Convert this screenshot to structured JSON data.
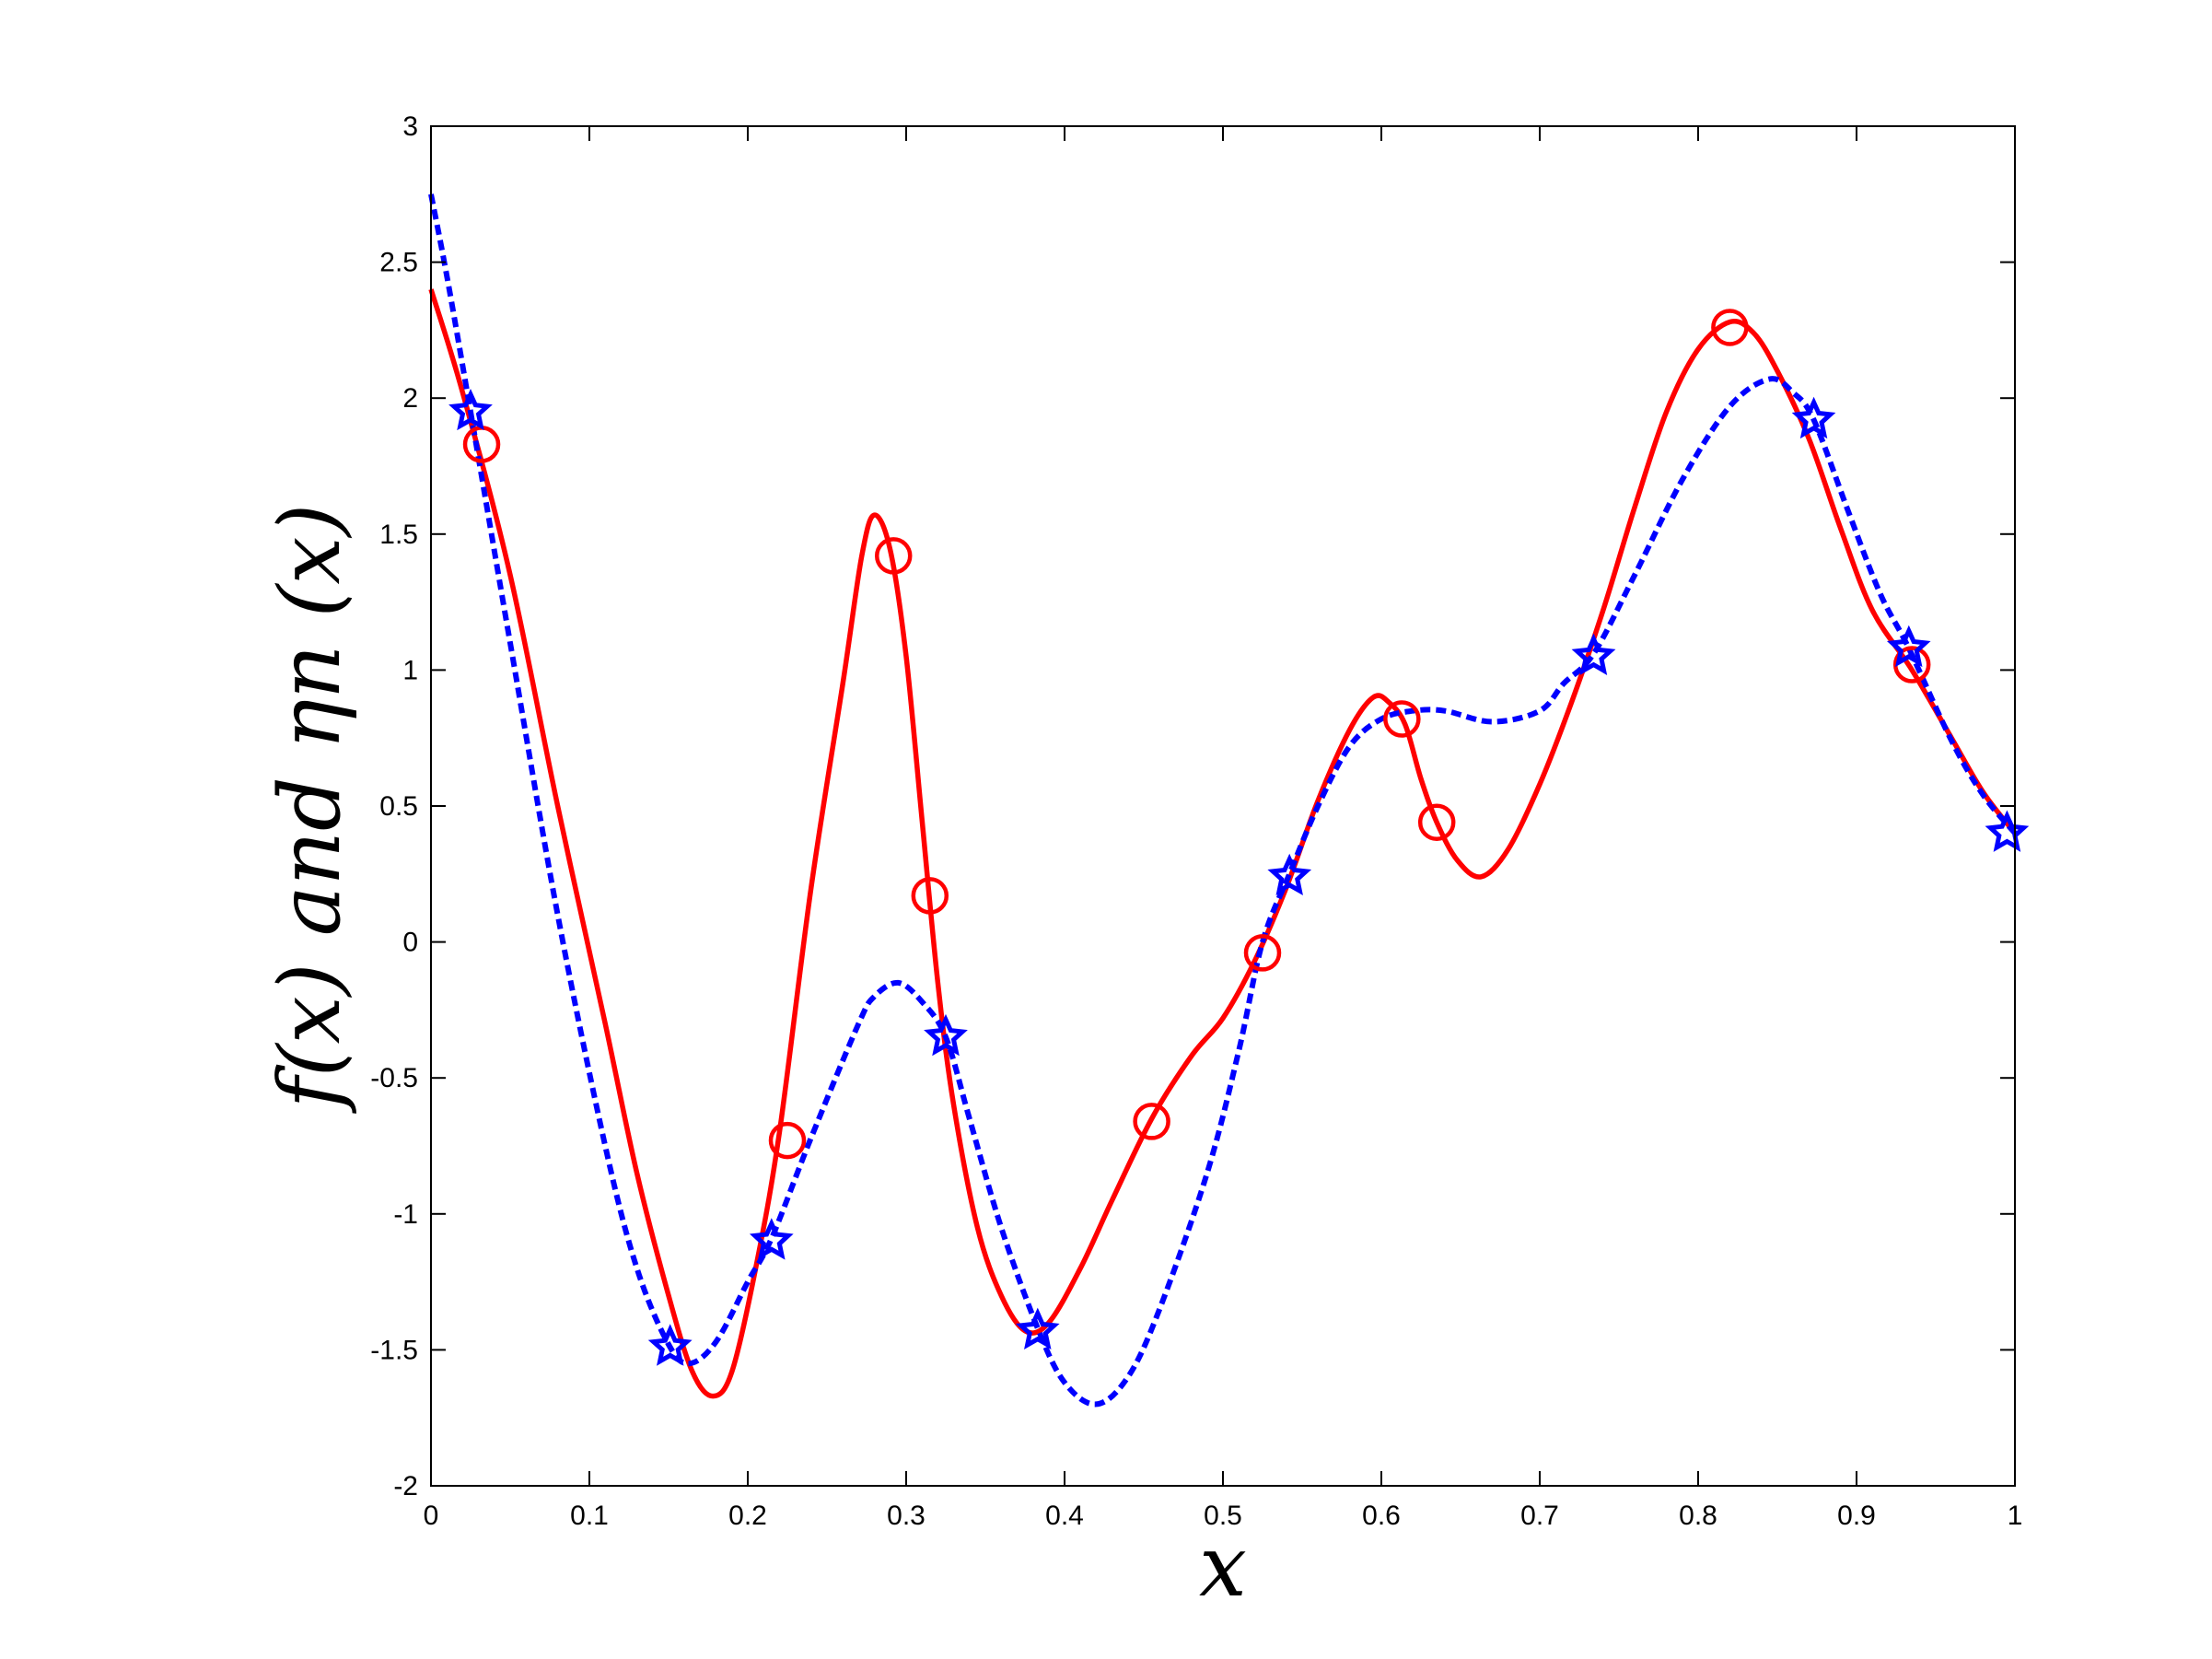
{
  "chart_data": {
    "type": "line",
    "title": "",
    "xlabel": "x",
    "ylabel": "f(x) and ηn (x)",
    "xlim": [
      0,
      1
    ],
    "ylim": [
      -2,
      3
    ],
    "xticks": [
      0,
      0.1,
      0.2,
      0.3,
      0.4,
      0.5,
      0.6,
      0.7,
      0.8,
      0.9,
      1
    ],
    "xtick_labels": [
      "0",
      "0.1",
      "0.2",
      "0.3",
      "0.4",
      "0.5",
      "0.6",
      "0.7",
      "0.8",
      "0.9",
      "1"
    ],
    "yticks": [
      -2,
      -1.5,
      -1,
      -0.5,
      0,
      0.5,
      1,
      1.5,
      2,
      2.5,
      3
    ],
    "ytick_labels": [
      "-2",
      "-1.5",
      "-1",
      "-0.5",
      "0",
      "0.5",
      "1",
      "1.5",
      "2",
      "2.5",
      "3"
    ],
    "grid": false,
    "legend": "none",
    "series": [
      {
        "style": "solid",
        "color": "#ff0000",
        "points": [
          [
            0.0,
            2.4
          ],
          [
            0.02,
            2.02
          ],
          [
            0.05,
            1.35
          ],
          [
            0.08,
            0.5
          ],
          [
            0.11,
            -0.3
          ],
          [
            0.13,
            -0.85
          ],
          [
            0.15,
            -1.3
          ],
          [
            0.165,
            -1.58
          ],
          [
            0.178,
            -1.67
          ],
          [
            0.19,
            -1.58
          ],
          [
            0.205,
            -1.2
          ],
          [
            0.22,
            -0.7
          ],
          [
            0.24,
            0.2
          ],
          [
            0.26,
            0.95
          ],
          [
            0.272,
            1.42
          ],
          [
            0.28,
            1.57
          ],
          [
            0.29,
            1.44
          ],
          [
            0.3,
            1.05
          ],
          [
            0.31,
            0.45
          ],
          [
            0.32,
            -0.15
          ],
          [
            0.33,
            -0.6
          ],
          [
            0.345,
            -1.05
          ],
          [
            0.36,
            -1.3
          ],
          [
            0.375,
            -1.43
          ],
          [
            0.39,
            -1.4
          ],
          [
            0.41,
            -1.2
          ],
          [
            0.43,
            -0.95
          ],
          [
            0.455,
            -0.65
          ],
          [
            0.48,
            -0.42
          ],
          [
            0.5,
            -0.28
          ],
          [
            0.52,
            -0.07
          ],
          [
            0.54,
            0.2
          ],
          [
            0.56,
            0.52
          ],
          [
            0.58,
            0.78
          ],
          [
            0.595,
            0.9
          ],
          [
            0.605,
            0.88
          ],
          [
            0.615,
            0.8
          ],
          [
            0.625,
            0.6
          ],
          [
            0.635,
            0.44
          ],
          [
            0.648,
            0.3
          ],
          [
            0.663,
            0.24
          ],
          [
            0.68,
            0.34
          ],
          [
            0.7,
            0.58
          ],
          [
            0.72,
            0.88
          ],
          [
            0.74,
            1.22
          ],
          [
            0.76,
            1.6
          ],
          [
            0.78,
            1.95
          ],
          [
            0.8,
            2.18
          ],
          [
            0.82,
            2.28
          ],
          [
            0.835,
            2.24
          ],
          [
            0.85,
            2.1
          ],
          [
            0.87,
            1.85
          ],
          [
            0.89,
            1.52
          ],
          [
            0.91,
            1.22
          ],
          [
            0.935,
            1.0
          ],
          [
            0.96,
            0.75
          ],
          [
            0.98,
            0.55
          ],
          [
            1.0,
            0.4
          ]
        ]
      },
      {
        "style": "dashed",
        "color": "#0000ff",
        "points": [
          [
            0.0,
            2.75
          ],
          [
            0.01,
            2.45
          ],
          [
            0.025,
            1.95
          ],
          [
            0.05,
            1.1
          ],
          [
            0.08,
            0.1
          ],
          [
            0.11,
            -0.75
          ],
          [
            0.13,
            -1.2
          ],
          [
            0.15,
            -1.48
          ],
          [
            0.163,
            -1.55
          ],
          [
            0.18,
            -1.47
          ],
          [
            0.2,
            -1.25
          ],
          [
            0.215,
            -1.09
          ],
          [
            0.24,
            -0.72
          ],
          [
            0.27,
            -0.3
          ],
          [
            0.28,
            -0.2
          ],
          [
            0.295,
            -0.15
          ],
          [
            0.31,
            -0.22
          ],
          [
            0.325,
            -0.35
          ],
          [
            0.34,
            -0.65
          ],
          [
            0.36,
            -1.05
          ],
          [
            0.383,
            -1.42
          ],
          [
            0.4,
            -1.62
          ],
          [
            0.42,
            -1.7
          ],
          [
            0.44,
            -1.6
          ],
          [
            0.46,
            -1.35
          ],
          [
            0.49,
            -0.85
          ],
          [
            0.51,
            -0.4
          ],
          [
            0.525,
            0.0
          ],
          [
            0.542,
            0.25
          ],
          [
            0.56,
            0.5
          ],
          [
            0.58,
            0.72
          ],
          [
            0.6,
            0.82
          ],
          [
            0.62,
            0.85
          ],
          [
            0.64,
            0.85
          ],
          [
            0.67,
            0.81
          ],
          [
            0.7,
            0.85
          ],
          [
            0.715,
            0.95
          ],
          [
            0.734,
            1.06
          ],
          [
            0.76,
            1.35
          ],
          [
            0.79,
            1.7
          ],
          [
            0.82,
            1.97
          ],
          [
            0.845,
            2.07
          ],
          [
            0.86,
            2.02
          ],
          [
            0.873,
            1.92
          ],
          [
            0.895,
            1.58
          ],
          [
            0.915,
            1.28
          ],
          [
            0.933,
            1.08
          ],
          [
            0.96,
            0.74
          ],
          [
            0.98,
            0.54
          ],
          [
            1.0,
            0.4
          ]
        ]
      }
    ],
    "markers": {
      "circles": {
        "color": "#ff0000",
        "points": [
          [
            0.032,
            1.83
          ],
          [
            0.225,
            -0.73
          ],
          [
            0.292,
            1.42
          ],
          [
            0.315,
            0.17
          ],
          [
            0.455,
            -0.66
          ],
          [
            0.525,
            -0.04
          ],
          [
            0.613,
            0.82
          ],
          [
            0.635,
            0.44
          ],
          [
            0.82,
            2.26
          ],
          [
            0.935,
            1.02
          ]
        ]
      },
      "stars": {
        "color": "#0000ff",
        "points": [
          [
            0.025,
            1.95
          ],
          [
            0.151,
            -1.49
          ],
          [
            0.215,
            -1.1
          ],
          [
            0.325,
            -0.35
          ],
          [
            0.383,
            -1.43
          ],
          [
            0.542,
            0.24
          ],
          [
            0.734,
            1.05
          ],
          [
            0.873,
            1.92
          ],
          [
            0.933,
            1.08
          ],
          [
            0.995,
            0.4
          ]
        ]
      }
    }
  }
}
